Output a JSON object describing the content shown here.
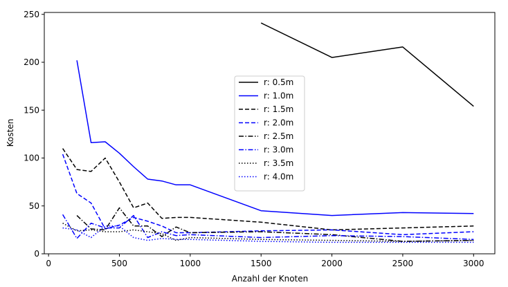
{
  "chart_data": {
    "type": "line",
    "title": "",
    "xlabel": "Anzahl der Knoten",
    "ylabel": "Kosten",
    "xlim": [
      -30,
      3150
    ],
    "ylim": [
      0,
      252
    ],
    "xticks": [
      0,
      500,
      1000,
      1500,
      2000,
      2500,
      3000
    ],
    "yticks": [
      0,
      50,
      100,
      150,
      200,
      250
    ],
    "grid": false,
    "legend_position": "center",
    "series": [
      {
        "name": "r: 0.5m",
        "color": "#000000",
        "dash": "solid",
        "x": [
          1500,
          2000,
          2500,
          3000
        ],
        "y": [
          241,
          205,
          216,
          154
        ]
      },
      {
        "name": "r: 1.0m",
        "color": "#0000ff",
        "dash": "solid",
        "x": [
          200,
          300,
          400,
          500,
          600,
          700,
          800,
          900,
          1000,
          1500,
          2000,
          2500,
          3000
        ],
        "y": [
          202,
          116,
          117,
          105,
          91,
          78,
          76,
          72,
          72,
          45,
          40,
          43,
          42
        ]
      },
      {
        "name": "r: 1.5m",
        "color": "#000000",
        "dash": "dashed",
        "x": [
          100,
          200,
          300,
          400,
          500,
          600,
          700,
          800,
          900,
          1000,
          1500,
          2000,
          2500,
          3000
        ],
        "y": [
          110,
          88,
          86,
          100,
          75,
          48,
          53,
          37,
          38,
          38,
          33,
          25,
          27,
          29
        ]
      },
      {
        "name": "r: 2.0m",
        "color": "#0000ff",
        "dash": "dashed",
        "x": [
          100,
          200,
          300,
          400,
          500,
          600,
          700,
          800,
          900,
          1000,
          1500,
          2000,
          2500,
          3000
        ],
        "y": [
          104,
          63,
          53,
          26,
          30,
          38,
          34,
          29,
          22,
          22,
          24,
          25,
          20,
          23
        ]
      },
      {
        "name": "r: 2.5m",
        "color": "#000000",
        "dash": "dashdot",
        "x": [
          200,
          300,
          400,
          500,
          600,
          700,
          800,
          900,
          1000,
          1500,
          2000,
          2500,
          3000
        ],
        "y": [
          40,
          26,
          25,
          48,
          29,
          29,
          18,
          28,
          22,
          23,
          20,
          13,
          14
        ]
      },
      {
        "name": "r: 3.0m",
        "color": "#0000ff",
        "dash": "dashdot",
        "x": [
          100,
          200,
          300,
          400,
          500,
          600,
          700,
          800,
          900,
          1000,
          1500,
          2000,
          2500,
          3000
        ],
        "y": [
          41,
          16,
          32,
          27,
          27,
          40,
          17,
          23,
          19,
          20,
          17,
          19,
          18,
          15
        ]
      },
      {
        "name": "r: 3.5m",
        "color": "#000000",
        "dash": "dotted",
        "x": [
          100,
          200,
          300,
          400,
          500,
          600,
          700,
          800,
          900,
          1000,
          1500,
          2000,
          2500,
          3000
        ],
        "y": [
          32,
          24,
          25,
          23,
          23,
          25,
          23,
          21,
          14,
          17,
          15,
          14,
          13,
          14
        ]
      },
      {
        "name": "r: 4.0m",
        "color": "#0000ff",
        "dash": "dotted",
        "x": [
          100,
          200,
          300,
          400,
          500,
          600,
          700,
          800,
          900,
          1000,
          1500,
          2000,
          2500,
          3000
        ],
        "y": [
          27,
          25,
          17,
          29,
          29,
          17,
          14,
          16,
          15,
          15,
          13,
          12,
          12,
          12
        ]
      }
    ]
  }
}
